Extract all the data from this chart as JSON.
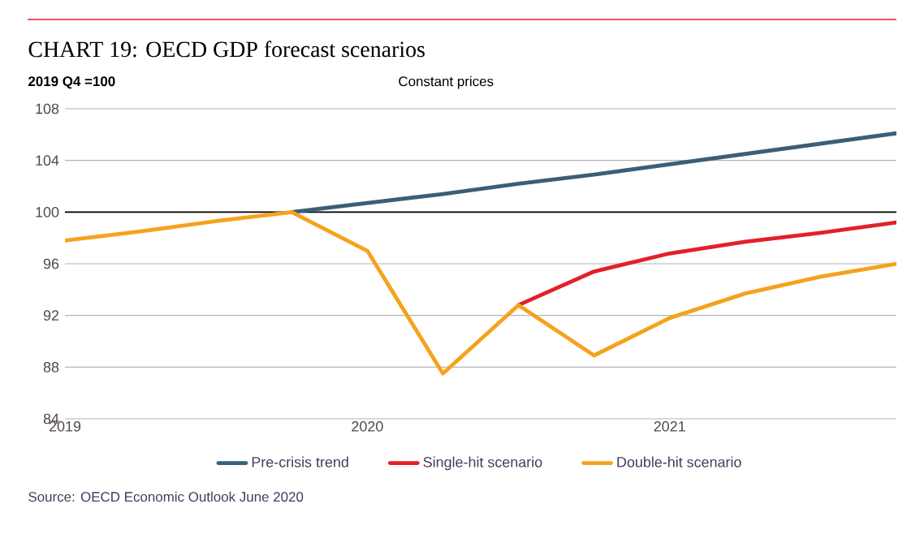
{
  "chart_data": {
    "type": "line",
    "title": "CHART 19: OECD GDP forecast scenarios",
    "subtitle": "Constant prices",
    "categories": [
      "2019",
      null,
      null,
      null,
      "2020",
      null,
      null,
      null,
      "2021",
      null,
      null,
      null
    ],
    "series": [
      {
        "name": "Pre-crisis trend",
        "color": "#3a5f78",
        "values": [
          null,
          null,
          null,
          100,
          100.7,
          101.4,
          102.2,
          102.9,
          103.7,
          104.5,
          105.3,
          106.1
        ]
      },
      {
        "name": "Single-hit scenario",
        "color": "#e3202a",
        "values": [
          null,
          null,
          null,
          null,
          null,
          null,
          92.8,
          95.4,
          96.8,
          97.7,
          98.4,
          99.2
        ]
      },
      {
        "name": "Double-hit scenario",
        "color": "#f5a21e",
        "values": [
          97.8,
          98.5,
          99.3,
          100,
          97.0,
          87.5,
          92.8,
          88.9,
          91.8,
          93.7,
          95.0,
          96.0
        ]
      }
    ],
    "ylim": [
      84,
      108
    ],
    "yticks": [
      84,
      88,
      92,
      96,
      100,
      104,
      108
    ],
    "grid": "y",
    "legend": "bottom",
    "line_style": "solid",
    "ref_lines": [
      {
        "axis": "y",
        "value": 100,
        "color": "#000000"
      }
    ],
    "annotations": [
      "2019 Q4 =100",
      "Source: OECD Economic Outlook June 2020"
    ]
  }
}
